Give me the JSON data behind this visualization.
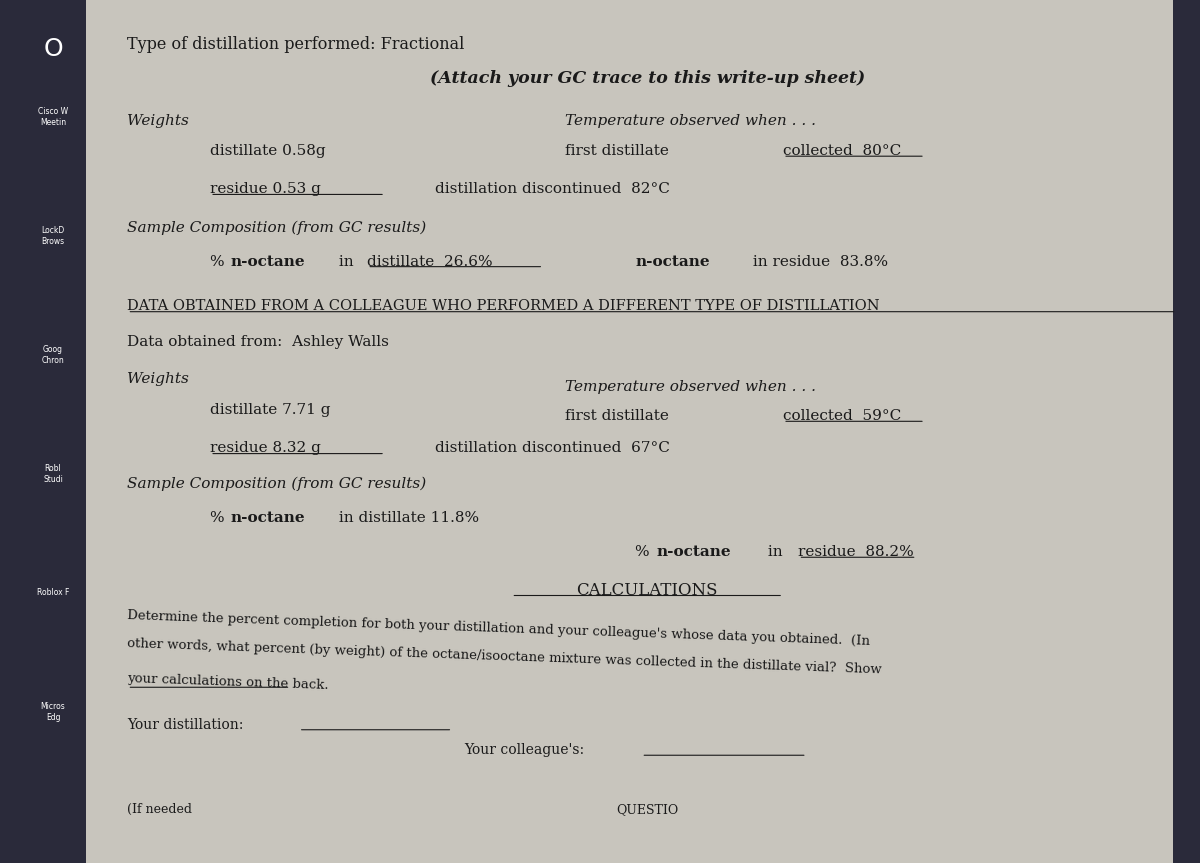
{
  "bg_color": "#c8c5bd",
  "main_bg": "#dedad2",
  "title_line1": "Type of distillation performed: Fractional",
  "title_line2": "(Attach your GC trace to this write-up sheet)",
  "section1_header": "Weights",
  "section1_distillate": "distillate 0.58g",
  "section1_residue": "residue 0.53 g",
  "section1_temp_header": "Temperature observed when . . .",
  "section1_first_distillate_a": "first distillate ",
  "section1_first_distillate_b": "collected  80°C",
  "section1_disc": "distillation discontinued  82°C",
  "section1_comp_header": "Sample Composition (from GC results)",
  "section1_distillate_pct_a": "% ",
  "section1_distillate_pct_b": "n-octane",
  "section1_distillate_pct_c": " in ",
  "section1_distillate_pct_d": "distillate  26.6%",
  "section1_residue_pct_a": "n-octane",
  "section1_residue_pct_b": " in residue  83.8%",
  "colleague_header": "DATA OBTAINED FROM A COLLEAGUE WHO PERFORMED A DIFFERENT TYPE OF DISTILLATION",
  "colleague_name": "Data obtained from:  Ashley Walls",
  "section2_header": "Weights",
  "section2_distillate": "distillate 7.71 g",
  "section2_residue": "residue 8.32 g",
  "section2_temp_header": "Temperature observed when . . .",
  "section2_first_distillate_a": "first distillate ",
  "section2_first_distillate_b": "collected  59°C",
  "section2_disc": "distillation discontinued  67°C",
  "section2_comp_header": "Sample Composition (from GC results)",
  "section2_distillate_pct_a": "% ",
  "section2_distillate_pct_b": "n-octane",
  "section2_distillate_pct_c": " in distillate 11.8%",
  "section2_residue_pct_a": "% ",
  "section2_residue_pct_b": "n-octane",
  "section2_residue_pct_c": " in ",
  "section2_residue_pct_d": "residue  88.2%",
  "calc_header": "CALCULATIONS",
  "calc_text1": "Determine the percent completion for both your distillation and your colleague's whose data you obtained.  (In",
  "calc_text2": "other words, what percent (by weight) of the octane/isooctane mixture was collected in the distillate vial?  Show",
  "calc_text3": "your calculations on the back.",
  "your_dist": "Your distillation:",
  "your_colleague": "Your colleague's:",
  "bottom_left": "(If needed",
  "bottom_right": "QUESTIO"
}
